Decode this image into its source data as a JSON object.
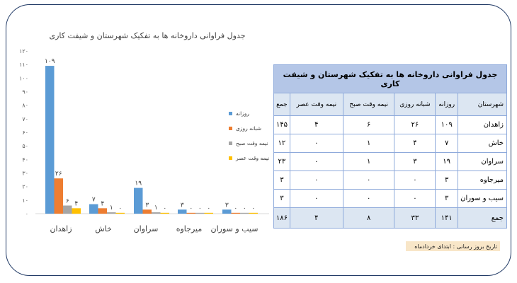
{
  "chart_data": {
    "type": "bar",
    "title": "جدول فراوانی داروخانه ها به تفکیک شهرستان و شیفت کاری",
    "categories": [
      "زاهدان",
      "خاش",
      "سراوان",
      "میرجاوه",
      "سیب و سوران"
    ],
    "series": [
      {
        "name": "روزانه",
        "color": "#5b9bd5",
        "values": [
          109,
          7,
          19,
          3,
          3
        ],
        "labels": [
          "۱۰۹",
          "۷",
          "۱۹",
          "۳",
          "۳"
        ]
      },
      {
        "name": "شبانه روزی",
        "color": "#ed7d31",
        "values": [
          26,
          4,
          3,
          0,
          0
        ],
        "labels": [
          "۲۶",
          "۴",
          "۳",
          "۰",
          "۰"
        ]
      },
      {
        "name": "نیمه وقت صبح",
        "color": "#a5a5a5",
        "values": [
          6,
          1,
          1,
          0,
          0
        ],
        "labels": [
          "۶",
          "۱",
          "۱",
          "۰",
          "۰"
        ]
      },
      {
        "name": "نیمه وقت عصر",
        "color": "#ffc000",
        "values": [
          4,
          0,
          0,
          0,
          0
        ],
        "labels": [
          "۴",
          "۰",
          "۰",
          "۰",
          "۰"
        ]
      }
    ],
    "ylim": [
      0,
      120
    ],
    "yticks": [
      "۰",
      "۱۰",
      "۲۰",
      "۳۰",
      "۴۰",
      "۵۰",
      "۶۰",
      "۷۰",
      "۸۰",
      "۹۰",
      "۱۰۰",
      "۱۱۰",
      "۱۲۰"
    ],
    "legend_position": "right",
    "grid": false
  },
  "table": {
    "title": "جدول فراوانی داروخانه ها به تفکیک شهرستان و شیفت کاری",
    "headers": [
      "شهرستان",
      "روزانه",
      "شبانه روزی",
      "نیمه وقت صبح",
      "نیمه وقت عصر",
      "جمع"
    ],
    "rows": [
      [
        "زاهدان",
        "۱۰۹",
        "۲۶",
        "۶",
        "۴",
        "۱۴۵"
      ],
      [
        "خاش",
        "۷",
        "۴",
        "۱",
        "۰",
        "۱۲"
      ],
      [
        "سراوان",
        "۱۹",
        "۳",
        "۱",
        "۰",
        "۲۳"
      ],
      [
        "میرجاوه",
        "۳",
        "۰",
        "۰",
        "۰",
        "۳"
      ],
      [
        "سیب و سوران",
        "۳",
        "۰",
        "۰",
        "۰",
        "۳"
      ],
      [
        "جمع",
        "۱۴۱",
        "۳۳",
        "۸",
        "۴",
        "۱۸۶"
      ]
    ]
  },
  "footnote": "تاریخ بروز رسانی : ابتدای  خردادماه"
}
